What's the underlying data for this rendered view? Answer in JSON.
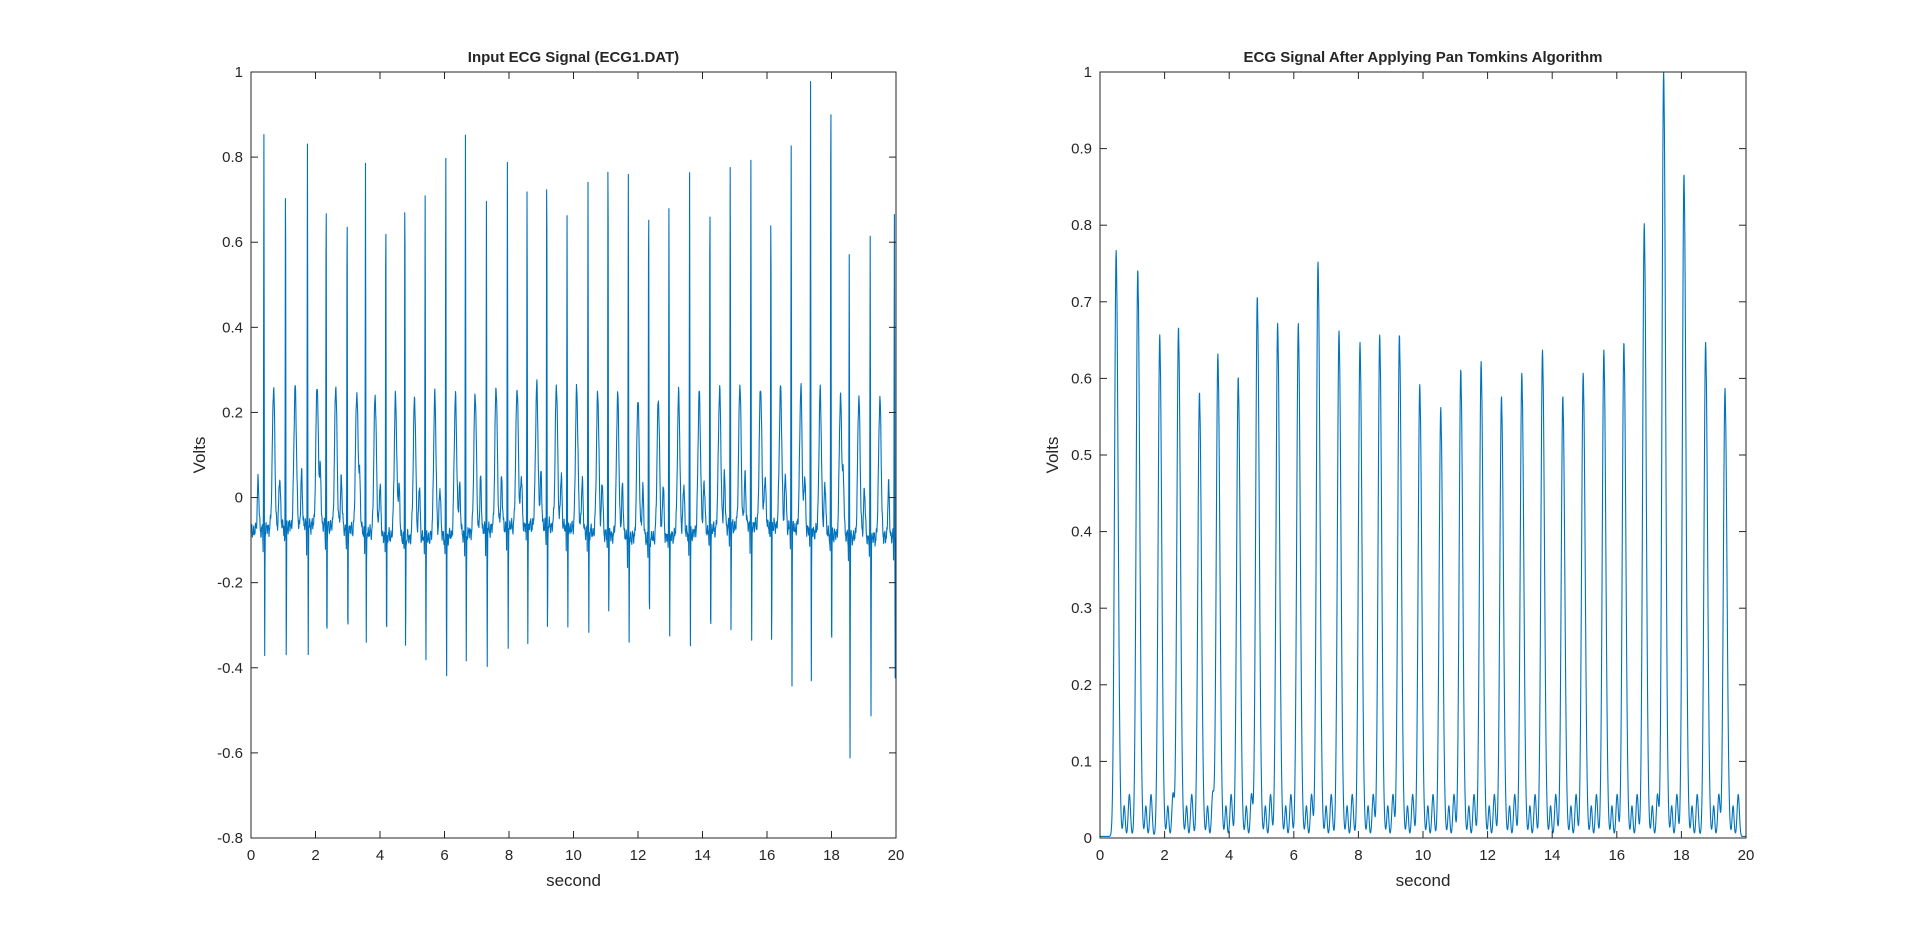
{
  "figure": {
    "background": "#ffffff",
    "line_color": "#0072bd",
    "axis_color": "#262626"
  },
  "chart_data": [
    {
      "type": "line",
      "title": "Input ECG Signal (ECG1.DAT)",
      "xlabel": "second",
      "ylabel": "Volts",
      "xlim": [
        0,
        20
      ],
      "ylim": [
        -0.8,
        1
      ],
      "xticks": [
        0,
        2,
        4,
        6,
        8,
        10,
        12,
        14,
        16,
        18,
        20
      ],
      "yticks": [
        -0.8,
        -0.6,
        -0.4,
        -0.2,
        0,
        0.2,
        0.4,
        0.6,
        0.8,
        1
      ],
      "grid": false,
      "legend": "none",
      "series": [
        {
          "waveform": "ecg",
          "r_peak_times": [
            0.4,
            1.07,
            1.75,
            2.33,
            2.98,
            3.55,
            4.18,
            4.77,
            5.4,
            6.04,
            6.65,
            7.3,
            7.95,
            8.56,
            9.17,
            9.8,
            10.45,
            11.07,
            11.7,
            12.33,
            12.96,
            13.6,
            14.23,
            14.86,
            15.5,
            16.12,
            16.75,
            17.35,
            17.98,
            18.55,
            19.2,
            19.95
          ],
          "r_peak_values": [
            0.84,
            0.77,
            0.82,
            0.72,
            0.68,
            0.78,
            0.71,
            0.77,
            0.73,
            0.83,
            0.85,
            0.69,
            0.76,
            0.73,
            0.79,
            0.67,
            0.75,
            0.85,
            0.77,
            0.74,
            0.72,
            0.78,
            0.72,
            0.78,
            0.78,
            0.7,
            0.82,
            0.99,
            1.0,
            0.57,
            0.61,
            0.69
          ],
          "s_values": [
            -0.37,
            -0.42,
            -0.39,
            -0.4,
            -0.37,
            -0.36,
            -0.37,
            -0.37,
            -0.38,
            -0.44,
            -0.4,
            -0.42,
            -0.38,
            -0.35,
            -0.36,
            -0.33,
            -0.33,
            -0.28,
            -0.33,
            -0.3,
            -0.32,
            -0.35,
            -0.35,
            -0.33,
            -0.36,
            -0.38,
            -0.44,
            -0.44,
            -0.4,
            -0.61,
            -0.5,
            -0.42
          ],
          "baseline": -0.08
        }
      ]
    },
    {
      "type": "line",
      "title": "ECG Signal After Applying Pan Tomkins Algorithm",
      "xlabel": "second",
      "ylabel": "Volts",
      "xlim": [
        0,
        20
      ],
      "ylim": [
        0,
        1
      ],
      "xticks": [
        0,
        2,
        4,
        6,
        8,
        10,
        12,
        14,
        16,
        18,
        20
      ],
      "yticks": [
        0,
        0.1,
        0.2,
        0.3,
        0.4,
        0.5,
        0.6,
        0.7,
        0.8,
        0.9,
        1
      ],
      "grid": false,
      "legend": "none",
      "series": [
        {
          "waveform": "integrated",
          "peak_times": [
            0.5,
            1.17,
            1.85,
            2.43,
            3.08,
            3.65,
            4.28,
            4.87,
            5.5,
            6.14,
            6.75,
            7.4,
            8.05,
            8.66,
            9.27,
            9.9,
            10.55,
            11.17,
            11.8,
            12.43,
            13.06,
            13.7,
            14.33,
            14.96,
            15.6,
            16.22,
            16.85,
            17.45,
            18.08,
            18.75,
            19.35
          ],
          "peak_values": [
            0.765,
            0.74,
            0.655,
            0.665,
            0.58,
            0.63,
            0.6,
            0.705,
            0.67,
            0.67,
            0.75,
            0.66,
            0.645,
            0.655,
            0.655,
            0.59,
            0.56,
            0.61,
            0.62,
            0.575,
            0.605,
            0.635,
            0.575,
            0.605,
            0.635,
            0.645,
            0.8,
            1.0,
            0.865,
            0.645,
            0.585
          ],
          "trough_value": 0.002
        }
      ]
    }
  ]
}
